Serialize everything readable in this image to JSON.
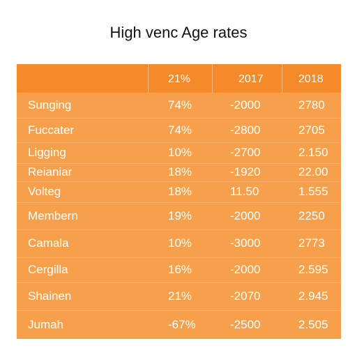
{
  "chart_data": {
    "type": "table",
    "title": "High venc Age rates",
    "columns": [
      "",
      "21%",
      "2017",
      "2018"
    ],
    "rows": [
      [
        "Sunging",
        "74%",
        "-2000",
        "2780"
      ],
      [
        "Fuccater",
        "74%",
        "-2800",
        "2705"
      ],
      [
        "Ligging",
        "10%",
        "-2700",
        "2.150"
      ],
      [
        "Reianiar",
        "18%",
        "-1920",
        "22.00"
      ],
      [
        "Volteg",
        "18%",
        "11.50",
        "1.555"
      ],
      [
        "Membern",
        "19%",
        "-2000",
        "2250"
      ],
      [
        "Camala",
        "10%",
        "-3000",
        "2773"
      ],
      [
        "Cergilla",
        "16%",
        "-2000",
        "2.595"
      ],
      [
        "Shainen",
        "21%",
        "-2070",
        "2.945"
      ],
      [
        "Jumah",
        "-67%",
        "-2500",
        "2.505"
      ]
    ]
  },
  "colors": {
    "header_band": "#f58a2b",
    "body_fill": "#f6a04c",
    "text": "#ffffff",
    "title_text": "#111111"
  }
}
